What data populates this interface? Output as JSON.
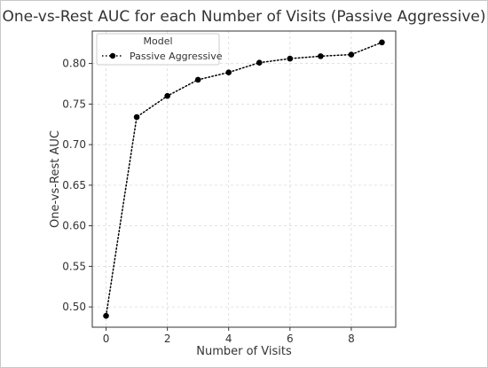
{
  "chart_data": {
    "type": "line",
    "title": "One-vs-Rest AUC for each Number of Visits (Passive Aggressive)",
    "xlabel": "Number of Visits",
    "ylabel": "One-vs-Rest AUC",
    "x": [
      0,
      1,
      2,
      3,
      4,
      5,
      6,
      7,
      8,
      9
    ],
    "series": [
      {
        "name": "Passive Aggressive",
        "values": [
          0.489,
          0.734,
          0.76,
          0.78,
          0.789,
          0.801,
          0.806,
          0.809,
          0.811,
          0.826
        ],
        "color": "#000000",
        "line_style": "dotted",
        "marker": "circle"
      }
    ],
    "xlim": [
      -0.45,
      9.45
    ],
    "ylim": [
      0.475,
      0.84
    ],
    "xticks": [
      0,
      2,
      4,
      6,
      8
    ],
    "yticks": [
      0.5,
      0.55,
      0.6,
      0.65,
      0.7,
      0.75,
      0.8
    ],
    "ytick_labels": [
      "0.50",
      "0.55",
      "0.60",
      "0.65",
      "0.70",
      "0.75",
      "0.80"
    ],
    "grid": true,
    "legend": {
      "title": "Model",
      "position": "top-left"
    }
  }
}
